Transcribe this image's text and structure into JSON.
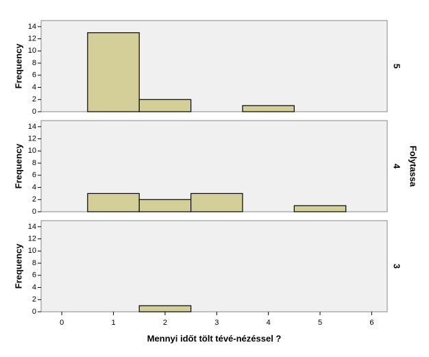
{
  "chart_data": [
    {
      "type": "histogram",
      "panel_label": "5",
      "ylabel": "Frequency",
      "bins": [
        0.5,
        1.5,
        2.5,
        3.5,
        4.5,
        5.5
      ],
      "values": [
        13,
        2,
        0,
        1,
        0
      ],
      "color": "#d4cf98",
      "xlim": [
        -0.4,
        6.3
      ],
      "ylim": [
        0,
        15
      ],
      "yticks": [
        0,
        2,
        4,
        6,
        8,
        10,
        12,
        14
      ]
    },
    {
      "type": "histogram",
      "panel_label": "4",
      "ylabel": "Frequency",
      "facet_title": "Folytassa",
      "bins": [
        0.5,
        1.5,
        2.5,
        3.5,
        4.5,
        5.5
      ],
      "values": [
        3,
        2,
        3,
        0,
        1
      ],
      "color": "#d4cf98",
      "xlim": [
        -0.4,
        6.3
      ],
      "ylim": [
        0,
        15
      ],
      "yticks": [
        0,
        2,
        4,
        6,
        8,
        10,
        12,
        14
      ]
    },
    {
      "type": "histogram",
      "panel_label": "3",
      "ylabel": "Frequency",
      "bins": [
        0.5,
        1.5,
        2.5,
        3.5,
        4.5,
        5.5
      ],
      "values": [
        0,
        1,
        0,
        0,
        0
      ],
      "color": "#d4cf98",
      "xlim": [
        -0.4,
        6.3
      ],
      "ylim": [
        0,
        15
      ],
      "yticks": [
        0,
        2,
        4,
        6,
        8,
        10,
        12,
        14
      ],
      "xticks": [
        0,
        1,
        2,
        3,
        4,
        5,
        6
      ],
      "xlabel": "Mennyi időt tölt tévé-nézéssel ?"
    }
  ]
}
